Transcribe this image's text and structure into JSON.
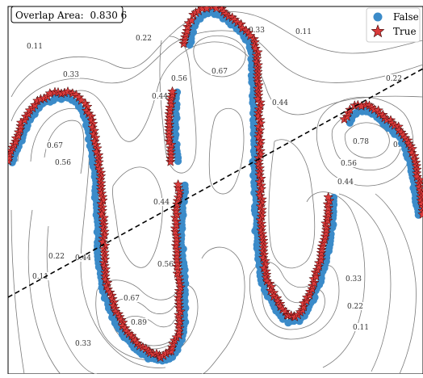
{
  "chart_data": {
    "type": "scatter",
    "title": "",
    "xlabel": "",
    "ylabel": "",
    "xlim": [
      0,
      524
    ],
    "ylim": [
      0,
      463
    ],
    "grid": false,
    "legend": {
      "placement": "top-right",
      "entries": [
        {
          "label": "False",
          "marker": "circle",
          "color": "#3b8bc9"
        },
        {
          "label": "True",
          "marker": "star",
          "color": "#d93b3b"
        }
      ]
    },
    "annotation": {
      "label": "Overlap Area:",
      "value": "0.830 6"
    },
    "decision_boundary": {
      "style": "dashed",
      "color": "#000000",
      "points": [
        [
          10,
          368
        ],
        [
          524,
          85
        ]
      ]
    },
    "contour_levels": [
      "0.11",
      "0.22",
      "0.33",
      "0.44",
      "0.56",
      "0.67",
      "0.78",
      "0.89"
    ],
    "contour_label_positions": [
      {
        "text": "0.11",
        "x": 43,
        "y": 60
      },
      {
        "text": "0.22",
        "x": 178,
        "y": 50
      },
      {
        "text": "0.33",
        "x": 88,
        "y": 95
      },
      {
        "text": "0.56",
        "x": 222,
        "y": 100
      },
      {
        "text": "0.67",
        "x": 272,
        "y": 91
      },
      {
        "text": "0.44",
        "x": 198,
        "y": 122
      },
      {
        "text": "0.33",
        "x": 318,
        "y": 40
      },
      {
        "text": "0.11",
        "x": 376,
        "y": 42
      },
      {
        "text": "0.44",
        "x": 347,
        "y": 130
      },
      {
        "text": "0.22",
        "x": 488,
        "y": 100
      },
      {
        "text": "0.67",
        "x": 68,
        "y": 183
      },
      {
        "text": "0.56",
        "x": 78,
        "y": 204
      },
      {
        "text": "0.78",
        "x": 447,
        "y": 178
      },
      {
        "text": "0.56",
        "x": 432,
        "y": 205
      },
      {
        "text": "0.44",
        "x": 428,
        "y": 228
      },
      {
        "text": "0.67",
        "x": 497,
        "y": 182
      },
      {
        "text": "0.44",
        "x": 200,
        "y": 253
      },
      {
        "text": "0.22",
        "x": 70,
        "y": 320
      },
      {
        "text": "0.44",
        "x": 103,
        "y": 322
      },
      {
        "text": "0.11",
        "x": 50,
        "y": 345
      },
      {
        "text": "0.56",
        "x": 205,
        "y": 330
      },
      {
        "text": "0.67",
        "x": 163,
        "y": 372
      },
      {
        "text": "0.89",
        "x": 172,
        "y": 402
      },
      {
        "text": "0.33",
        "x": 438,
        "y": 348
      },
      {
        "text": "0.22",
        "x": 440,
        "y": 382
      },
      {
        "text": "0.11",
        "x": 447,
        "y": 408
      },
      {
        "text": "0.33",
        "x": 103,
        "y": 428
      }
    ],
    "curve_segments": [
      [
        [
          12,
          200
        ],
        [
          20,
          180
        ],
        [
          32,
          150
        ],
        [
          48,
          128
        ],
        [
          68,
          118
        ],
        [
          88,
          118
        ],
        [
          102,
          130
        ],
        [
          110,
          150
        ],
        [
          116,
          180
        ],
        [
          120,
          210
        ],
        [
          122,
          240
        ],
        [
          124,
          270
        ],
        [
          125,
          300
        ],
        [
          126,
          330
        ],
        [
          130,
          355
        ],
        [
          138,
          380
        ],
        [
          150,
          405
        ],
        [
          165,
          425
        ],
        [
          185,
          440
        ],
        [
          200,
          445
        ],
        [
          215,
          436
        ],
        [
          224,
          415
        ],
        [
          226,
          390
        ],
        [
          226,
          360
        ],
        [
          224,
          330
        ],
        [
          222,
          300
        ],
        [
          222,
          270
        ],
        [
          224,
          245
        ],
        [
          226,
          225
        ]
      ],
      [
        [
          216,
          200
        ],
        [
          214,
          175
        ],
        [
          214,
          150
        ],
        [
          215,
          125
        ],
        [
          217,
          110
        ]
      ],
      [
        [
          232,
          55
        ],
        [
          236,
          35
        ],
        [
          242,
          22
        ],
        [
          252,
          15
        ],
        [
          262,
          12
        ],
        [
          272,
          15
        ],
        [
          282,
          22
        ],
        [
          292,
          30
        ],
        [
          302,
          40
        ],
        [
          310,
          50
        ],
        [
          315,
          65
        ],
        [
          316,
          85
        ],
        [
          317,
          110
        ],
        [
          318,
          140
        ],
        [
          318,
          170
        ],
        [
          318,
          200
        ],
        [
          319,
          230
        ],
        [
          320,
          260
        ],
        [
          321,
          290
        ],
        [
          323,
          320
        ],
        [
          327,
          345
        ],
        [
          335,
          365
        ],
        [
          345,
          382
        ],
        [
          357,
          395
        ],
        [
          368,
          395
        ],
        [
          377,
          385
        ],
        [
          384,
          370
        ],
        [
          390,
          355
        ],
        [
          397,
          335
        ],
        [
          403,
          310
        ],
        [
          407,
          285
        ],
        [
          410,
          262
        ],
        [
          411,
          240
        ]
      ],
      [
        [
          430,
          150
        ],
        [
          440,
          135
        ],
        [
          452,
          133
        ],
        [
          466,
          140
        ],
        [
          478,
          150
        ],
        [
          490,
          160
        ],
        [
          500,
          172
        ],
        [
          508,
          190
        ],
        [
          514,
          215
        ],
        [
          518,
          245
        ],
        [
          522,
          270
        ]
      ]
    ],
    "series": [
      {
        "name": "False",
        "marker": "circle",
        "color": "#3b8bc9",
        "sample_offset": 3.5
      },
      {
        "name": "True",
        "marker": "star",
        "color": "#d93b3b",
        "sample_offset": -3.5
      }
    ]
  }
}
